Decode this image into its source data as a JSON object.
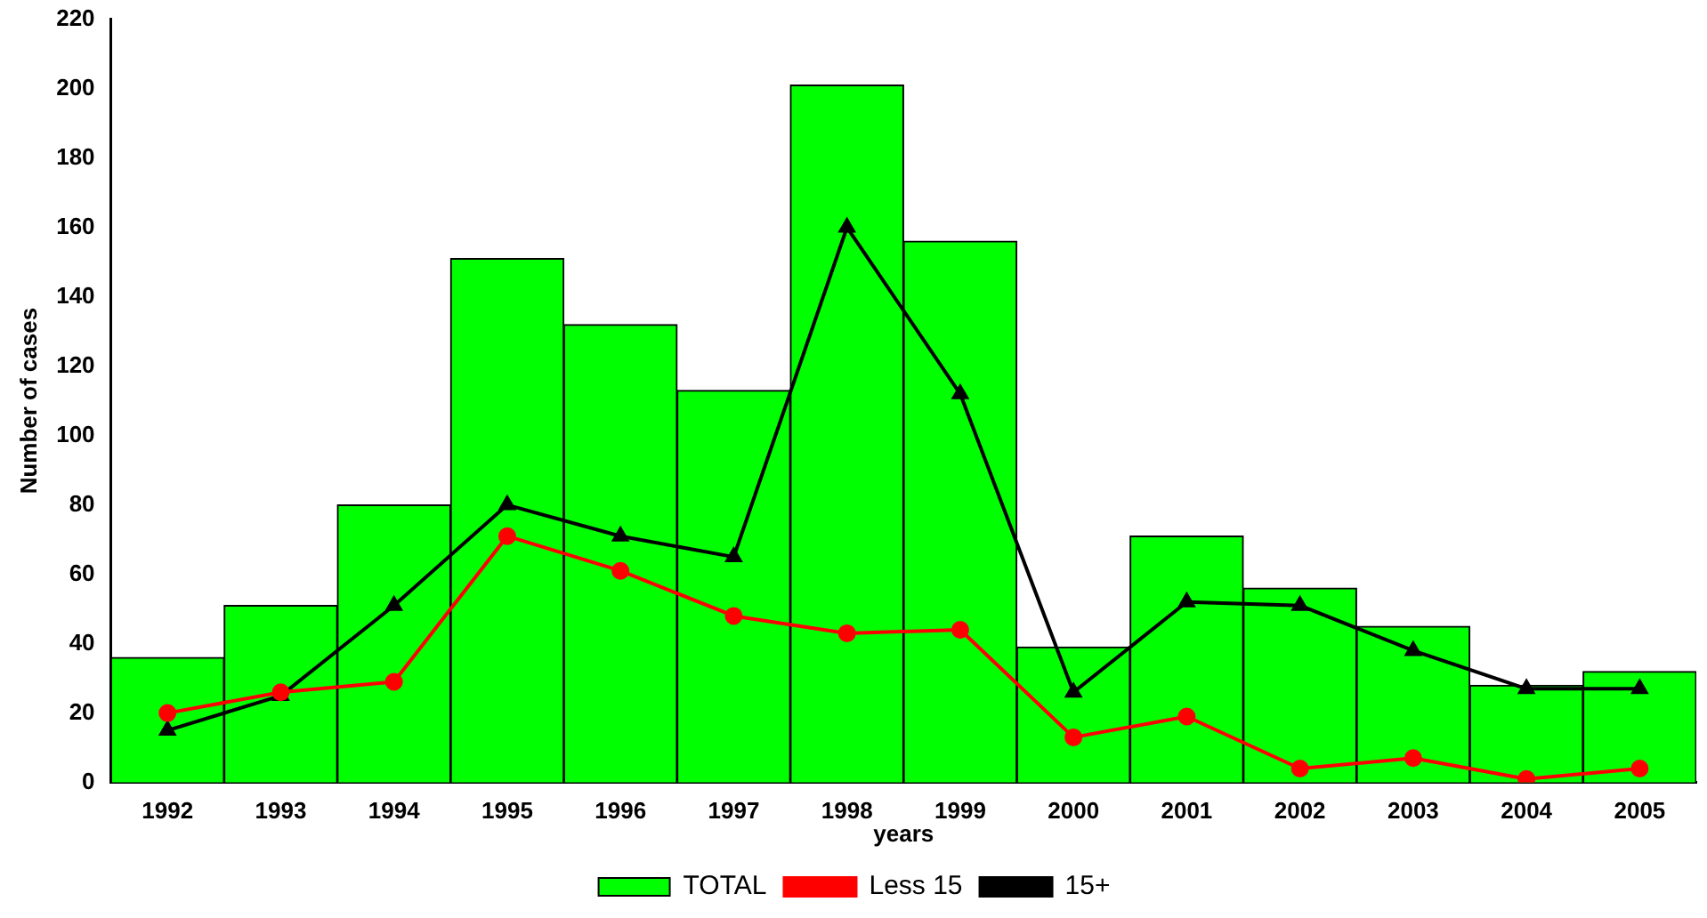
{
  "chart_data": {
    "type": "bar",
    "xlabel": "years",
    "ylabel": "Number of cases",
    "categories": [
      "1992",
      "1993",
      "1994",
      "1995",
      "1996",
      "1997",
      "1998",
      "1999",
      "2000",
      "2001",
      "2002",
      "2003",
      "2004",
      "2005"
    ],
    "series": [
      {
        "name": "TOTAL",
        "color": "#00ff00",
        "values": [
          36,
          51,
          80,
          151,
          132,
          113,
          201,
          156,
          39,
          71,
          56,
          45,
          28,
          32
        ]
      },
      {
        "name": "Less 15",
        "type": "line",
        "marker": "circle",
        "color": "#ff0000",
        "values": [
          20,
          26,
          29,
          71,
          61,
          48,
          43,
          44,
          13,
          19,
          4,
          7,
          1,
          4
        ]
      },
      {
        "name": "15+",
        "type": "line",
        "marker": "triangle",
        "color": "#000000",
        "values": [
          15,
          25,
          51,
          80,
          71,
          65,
          160,
          112,
          26,
          52,
          51,
          38,
          27,
          27
        ]
      }
    ],
    "ylim": [
      0,
      220
    ],
    "yticks": [
      0,
      20,
      40,
      60,
      80,
      100,
      120,
      140,
      160,
      180,
      200,
      220
    ],
    "grid": false,
    "legend": "bottom"
  }
}
